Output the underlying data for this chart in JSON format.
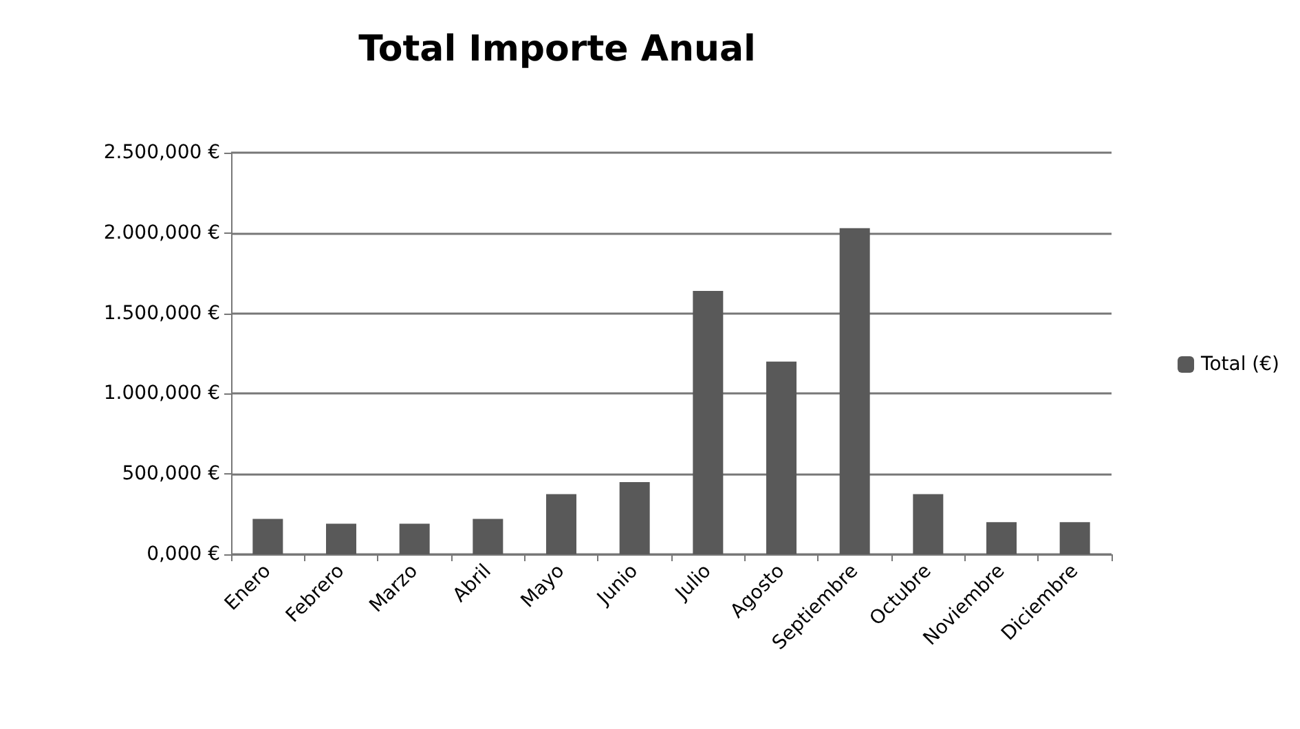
{
  "chart_data": {
    "type": "bar",
    "title": "Total Importe Anual",
    "categories": [
      "Enero",
      "Febrero",
      "Marzo",
      "Abril",
      "Mayo",
      "Junio",
      "Julio",
      "Agosto",
      "Septiembre",
      "Octubre",
      "Noviembre",
      "Diciembre"
    ],
    "series": [
      {
        "name": "Total (€)",
        "color": "#595959",
        "values": [
          220,
          190,
          190,
          220,
          375,
          450,
          1640,
          1200,
          2030,
          375,
          200,
          200
        ]
      }
    ],
    "ylim": [
      0,
      2500
    ],
    "yticks": [
      {
        "value": 0,
        "label": "0,000 €"
      },
      {
        "value": 500,
        "label": "500,000 €"
      },
      {
        "value": 1000,
        "label": "1.000,000 €"
      },
      {
        "value": 1500,
        "label": "1.500,000 €"
      },
      {
        "value": 2000,
        "label": "2.000,000 €"
      },
      {
        "value": 2500,
        "label": "2.500,000 €"
      }
    ],
    "grid": "y",
    "legend": "right"
  }
}
